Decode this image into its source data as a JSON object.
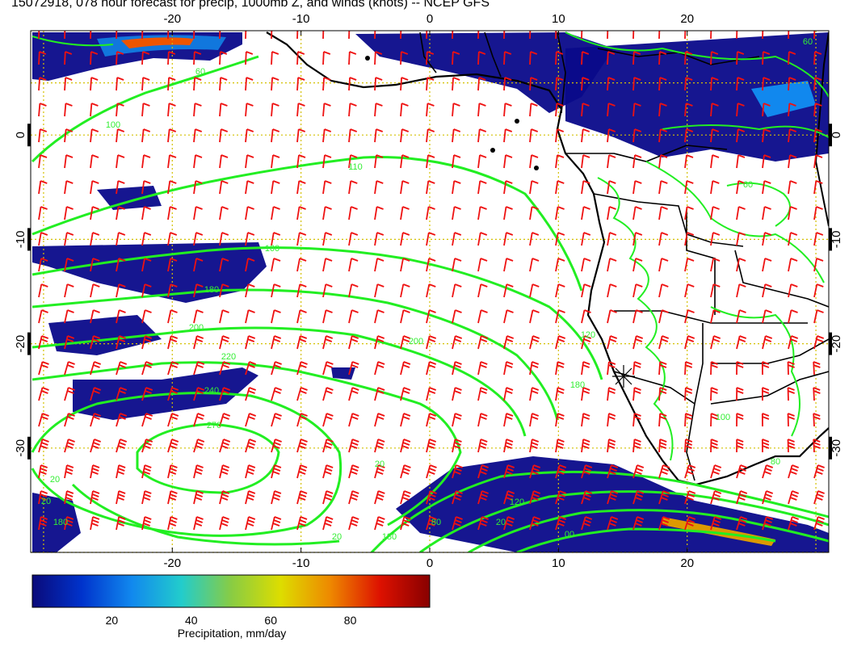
{
  "title": "15072918, 078 hour forecast for precip, 1000mb Z, and winds (knots) -- NCEP GFS",
  "map": {
    "lon_range": [
      -31,
      31
    ],
    "lat_range": [
      -40,
      10
    ],
    "x_ticks": [
      "-20",
      "-10",
      "0",
      "10",
      "20"
    ],
    "y_ticks": [
      "0",
      "-10",
      "-20",
      "-30"
    ],
    "grid": "dotted",
    "grid_color": "#d4c000",
    "coast_color": "#000000",
    "contour_color": "#22ee22",
    "barb_color": "#ee1111"
  },
  "contour_labels": [
    "60",
    "100",
    "110",
    "160",
    "180",
    "200",
    "220",
    "240",
    "270",
    "200",
    "180",
    "20",
    "20",
    "20",
    "20",
    "180",
    "120",
    "100",
    "80",
    "60",
    "00",
    "180",
    "120",
    "80",
    "20",
    "60"
  ],
  "colorbar": {
    "label": "Precipitation, mm/day",
    "ticks": [
      "20",
      "40",
      "60",
      "80"
    ],
    "colors": [
      "#0a0a7a",
      "#0033cc",
      "#1188ee",
      "#22cccc",
      "#88cc44",
      "#dddd00",
      "#ee8800",
      "#dd1100",
      "#880000"
    ]
  }
}
